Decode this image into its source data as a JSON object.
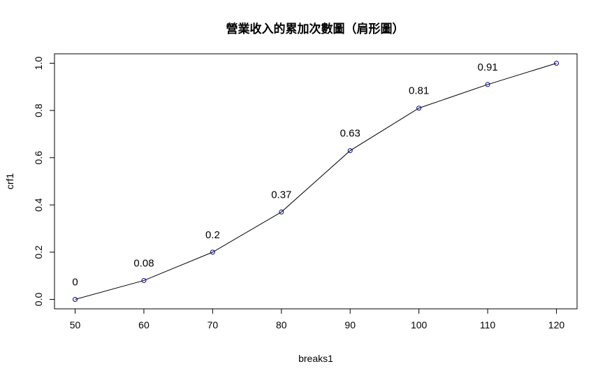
{
  "chart_data": {
    "type": "line",
    "title": "營業收入的累加次數圖（肩形圖）",
    "xlabel": "breaks1",
    "ylabel": "crf1",
    "x": [
      50,
      60,
      70,
      80,
      90,
      100,
      110,
      120
    ],
    "y": [
      0,
      0.08,
      0.2,
      0.37,
      0.63,
      0.81,
      0.91,
      1.0
    ],
    "point_labels": [
      "0",
      "0.08",
      "0.2",
      "0.37",
      "0.63",
      "0.81",
      "0.91",
      ""
    ],
    "xlim": [
      47,
      123
    ],
    "ylim": [
      -0.04,
      1.04
    ],
    "x_ticks": [
      50,
      60,
      70,
      80,
      90,
      100,
      110,
      120
    ],
    "x_tick_labels": [
      "50",
      "60",
      "70",
      "80",
      "90",
      "100",
      "110",
      "120"
    ],
    "y_ticks": [
      0,
      0.2,
      0.4,
      0.6,
      0.8,
      1.0
    ],
    "y_tick_labels": [
      "0.0",
      "0.2",
      "0.4",
      "0.6",
      "0.8",
      "1.0"
    ],
    "grid": false,
    "line_color": "#000000",
    "point_color": "#00008b"
  }
}
